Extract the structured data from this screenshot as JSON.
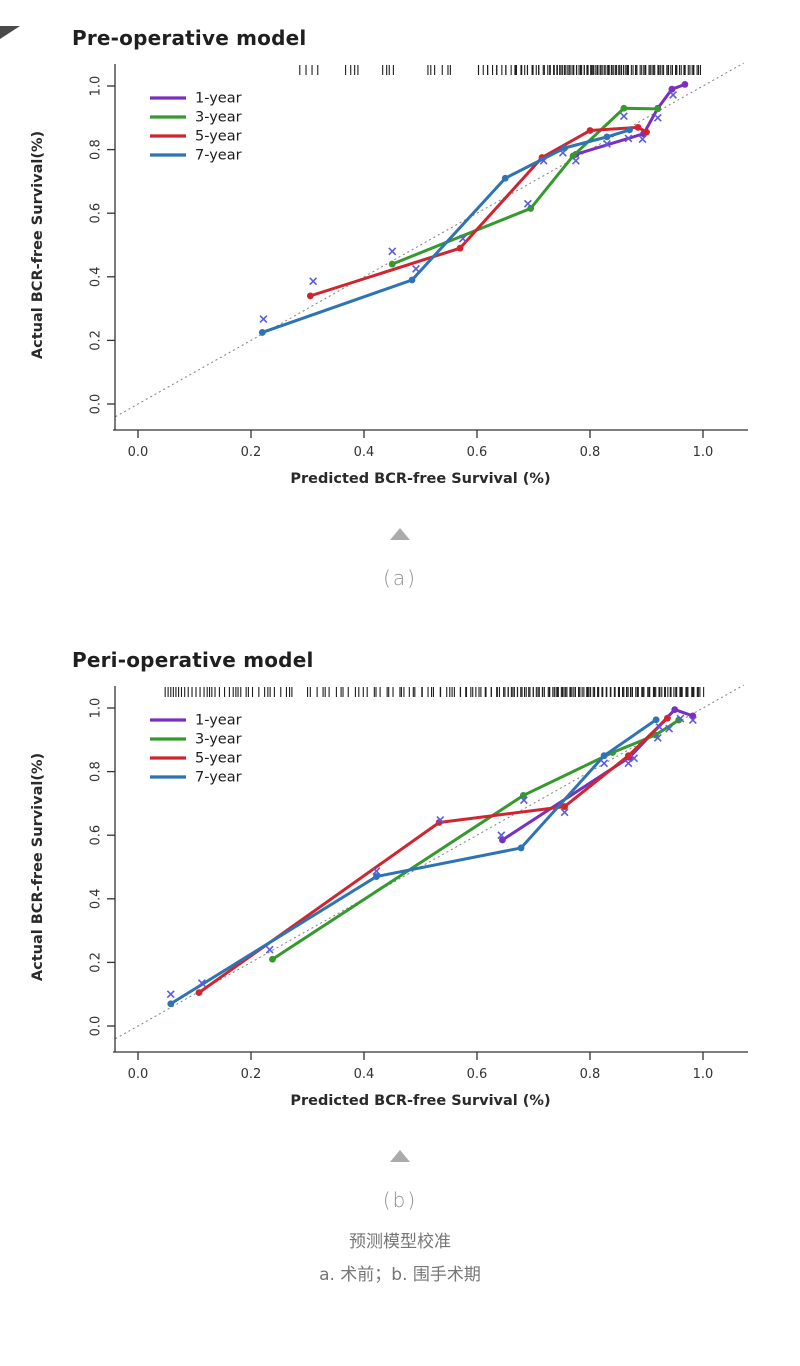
{
  "corner_fold": {
    "color": "#4a4a4a"
  },
  "figures": [
    {
      "id": "a",
      "marker_label": "(a)"
    },
    {
      "id": "b",
      "marker_label": "(b)"
    }
  ],
  "caption": {
    "line1": "预测模型校准",
    "line2": "a. 术前；b. 围手术期"
  },
  "chart_data": [
    {
      "type": "line",
      "title": "Pre-operative model",
      "xlabel": "Predicted BCR-free Survival (%)",
      "ylabel": "Actual BCR-free Survival(%)",
      "xlim": [
        0.0,
        1.0
      ],
      "ylim": [
        0.0,
        1.0
      ],
      "xticks": [
        "0.0",
        "0.2",
        "0.4",
        "0.6",
        "0.8",
        "1.0"
      ],
      "yticks": [
        "0.0",
        "0.2",
        "0.4",
        "0.6",
        "0.8",
        "1.0"
      ],
      "grid": false,
      "legend_position": "top-left",
      "reference_line": {
        "type": "diagonal-ideal",
        "style": "dotted",
        "color": "#808080"
      },
      "series": [
        {
          "name": "1-year",
          "color": "#7B2FBE",
          "points": [
            [
              0.775,
              0.785
            ],
            [
              0.895,
              0.85
            ],
            [
              0.92,
              0.93
            ],
            [
              0.945,
              0.99
            ],
            [
              0.968,
              1.005
            ]
          ]
        },
        {
          "name": "3-year",
          "color": "#35992E",
          "points": [
            [
              0.45,
              0.44
            ],
            [
              0.695,
              0.615
            ],
            [
              0.77,
              0.78
            ],
            [
              0.86,
              0.93
            ],
            [
              0.92,
              0.928
            ]
          ]
        },
        {
          "name": "5-year",
          "color": "#D0252F",
          "points": [
            [
              0.305,
              0.34
            ],
            [
              0.57,
              0.49
            ],
            [
              0.715,
              0.775
            ],
            [
              0.8,
              0.86
            ],
            [
              0.885,
              0.87
            ],
            [
              0.9,
              0.855
            ]
          ]
        },
        {
          "name": "7-year",
          "color": "#2E74B5",
          "points": [
            [
              0.22,
              0.225
            ],
            [
              0.485,
              0.39
            ],
            [
              0.65,
              0.71
            ],
            [
              0.755,
              0.805
            ],
            [
              0.83,
              0.84
            ],
            [
              0.87,
              0.862
            ]
          ]
        }
      ],
      "corrected_x_marks": {
        "meaning": "bias-corrected estimates (x symbols)",
        "color": "#5B5BE0",
        "points": [
          [
            0.222,
            0.267
          ],
          [
            0.31,
            0.386
          ],
          [
            0.45,
            0.48
          ],
          [
            0.492,
            0.425
          ],
          [
            0.575,
            0.52
          ],
          [
            0.69,
            0.63
          ],
          [
            0.718,
            0.765
          ],
          [
            0.752,
            0.79
          ],
          [
            0.775,
            0.765
          ],
          [
            0.83,
            0.818
          ],
          [
            0.86,
            0.905
          ],
          [
            0.868,
            0.835
          ],
          [
            0.893,
            0.833
          ],
          [
            0.92,
            0.9
          ],
          [
            0.947,
            0.972
          ]
        ]
      },
      "rug": {
        "meaning": "distribution of predicted values along top edge",
        "clusters_from_to_count": [
          [
            0.285,
            0.315,
            4
          ],
          [
            0.365,
            0.39,
            4
          ],
          [
            0.43,
            0.455,
            4
          ],
          [
            0.51,
            0.555,
            6
          ],
          [
            0.6,
            0.665,
            13
          ],
          [
            0.668,
            0.732,
            17
          ],
          [
            0.735,
            0.8,
            24
          ],
          [
            0.802,
            0.868,
            27
          ],
          [
            0.87,
            0.995,
            42
          ]
        ]
      }
    },
    {
      "type": "line",
      "title": "Peri-operative model",
      "xlabel": "Predicted BCR-free Survival (%)",
      "ylabel": "Actual BCR-free Survival(%)",
      "xlim": [
        0.0,
        1.0
      ],
      "ylim": [
        0.0,
        1.0
      ],
      "xticks": [
        "0.0",
        "0.2",
        "0.4",
        "0.6",
        "0.8",
        "1.0"
      ],
      "yticks": [
        "0.0",
        "0.2",
        "0.4",
        "0.6",
        "0.8",
        "1.0"
      ],
      "grid": false,
      "legend_position": "top-left",
      "reference_line": {
        "type": "diagonal-ideal",
        "style": "dotted",
        "color": "#808080"
      },
      "series": [
        {
          "name": "1-year",
          "color": "#7B2FBE",
          "points": [
            [
              0.645,
              0.585
            ],
            [
              0.87,
              0.845
            ],
            [
              0.95,
              0.995
            ],
            [
              0.982,
              0.975
            ]
          ]
        },
        {
          "name": "3-year",
          "color": "#35992E",
          "points": [
            [
              0.238,
              0.21
            ],
            [
              0.682,
              0.725
            ],
            [
              0.84,
              0.86
            ],
            [
              0.916,
              0.915
            ],
            [
              0.957,
              0.962
            ]
          ]
        },
        {
          "name": "5-year",
          "color": "#D0252F",
          "points": [
            [
              0.108,
              0.105
            ],
            [
              0.533,
              0.64
            ],
            [
              0.755,
              0.69
            ],
            [
              0.868,
              0.85
            ],
            [
              0.937,
              0.968
            ]
          ]
        },
        {
          "name": "7-year",
          "color": "#2E74B5",
          "points": [
            [
              0.058,
              0.07
            ],
            [
              0.422,
              0.47
            ],
            [
              0.678,
              0.56
            ],
            [
              0.825,
              0.85
            ],
            [
              0.917,
              0.963
            ]
          ]
        }
      ],
      "corrected_x_marks": {
        "meaning": "bias-corrected estimates (x symbols)",
        "color": "#5B5BE0",
        "points": [
          [
            0.058,
            0.1
          ],
          [
            0.113,
            0.135
          ],
          [
            0.233,
            0.24
          ],
          [
            0.422,
            0.487
          ],
          [
            0.535,
            0.648
          ],
          [
            0.643,
            0.6
          ],
          [
            0.683,
            0.71
          ],
          [
            0.755,
            0.672
          ],
          [
            0.825,
            0.826
          ],
          [
            0.868,
            0.826
          ],
          [
            0.878,
            0.842
          ],
          [
            0.92,
            0.906
          ],
          [
            0.923,
            0.94
          ],
          [
            0.94,
            0.935
          ],
          [
            0.96,
            0.967
          ],
          [
            0.982,
            0.962
          ]
        ]
      },
      "rug": {
        "meaning": "distribution of predicted values along top edge",
        "clusters_from_to_count": [
          [
            0.045,
            0.115,
            13
          ],
          [
            0.12,
            0.185,
            11
          ],
          [
            0.19,
            0.275,
            12
          ],
          [
            0.3,
            0.39,
            12
          ],
          [
            0.4,
            0.468,
            10
          ],
          [
            0.473,
            0.558,
            14
          ],
          [
            0.563,
            0.638,
            16
          ],
          [
            0.643,
            0.718,
            23
          ],
          [
            0.722,
            0.798,
            27
          ],
          [
            0.8,
            0.873,
            31
          ],
          [
            0.875,
            0.998,
            50
          ]
        ]
      }
    }
  ]
}
